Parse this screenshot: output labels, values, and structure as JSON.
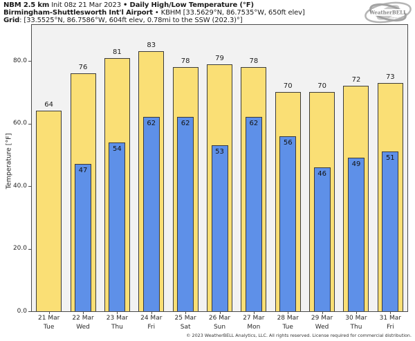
{
  "header": {
    "line1": {
      "b1": "NBM 2.5 km",
      "r1": " Init 08z 21 Mar 2023 ",
      "b2": "• Daily High/Low Temperature (°F)"
    },
    "line2": {
      "b1": "Birmingham-Shuttlesworth Int'l Airport",
      "r1": " • KBHM [33.5629°N, 86.7535°W, 650ft elev]"
    },
    "line3": {
      "b1": "Grid",
      "r1": ": [33.5525°N, 86.7586°W, 604ft elev, 0.78mi to the SSW (202.3)°]"
    }
  },
  "logo": {
    "name": "WeatherBELL",
    "sub": "Analytics LLC"
  },
  "footer": {
    "copyright": "© 2023 WeatherBELL Analytics, LLC. All rights reserved. License required for commercial distribution."
  },
  "chart_data": {
    "type": "bar",
    "title": "NBM 2.5 km Init 08z 21 Mar 2023 • Daily High/Low Temperature (°F)",
    "subtitle": "Birmingham-Shuttlesworth Int'l Airport • KBHM [33.5629°N, 86.7535°W, 650ft elev]",
    "grid_info": "Grid: [33.5525°N, 86.7586°W, 604ft elev, 0.78mi to the SSW (202.3)°]",
    "categories": [
      {
        "date": "21 Mar",
        "day": "Tue"
      },
      {
        "date": "22 Mar",
        "day": "Wed"
      },
      {
        "date": "23 Mar",
        "day": "Thu"
      },
      {
        "date": "24 Mar",
        "day": "Fri"
      },
      {
        "date": "25 Mar",
        "day": "Sat"
      },
      {
        "date": "26 Mar",
        "day": "Sun"
      },
      {
        "date": "27 Mar",
        "day": "Mon"
      },
      {
        "date": "28 Mar",
        "day": "Tue"
      },
      {
        "date": "29 Mar",
        "day": "Wed"
      },
      {
        "date": "30 Mar",
        "day": "Thu"
      },
      {
        "date": "31 Mar",
        "day": "Fri"
      }
    ],
    "series": [
      {
        "name": "Daily High",
        "color": "#fadf75",
        "values": [
          64,
          76,
          81,
          83,
          78,
          79,
          78,
          70,
          70,
          72,
          73
        ]
      },
      {
        "name": "Daily Low",
        "color": "#5e90e8",
        "values": [
          null,
          47,
          54,
          62,
          62,
          53,
          62,
          56,
          46,
          49,
          51
        ]
      }
    ],
    "ylabel": "Temperature [°F]",
    "yticks": [
      {
        "value": 0,
        "label": "0.0"
      },
      {
        "value": 20,
        "label": "20.0"
      },
      {
        "value": 40,
        "label": "40.0"
      },
      {
        "value": 60,
        "label": "60.0"
      },
      {
        "value": 80,
        "label": "80.0"
      }
    ],
    "ylim": [
      0,
      91.5
    ],
    "grid_lines": false,
    "legend": "none"
  },
  "colors": {
    "high": "#fadf75",
    "low": "#5e90e8",
    "bar_border": "#3a3a3a",
    "plot_bg": "#f2f2f2",
    "spine": "#4a4a4a",
    "logo_gray": "#9d9d9d"
  }
}
